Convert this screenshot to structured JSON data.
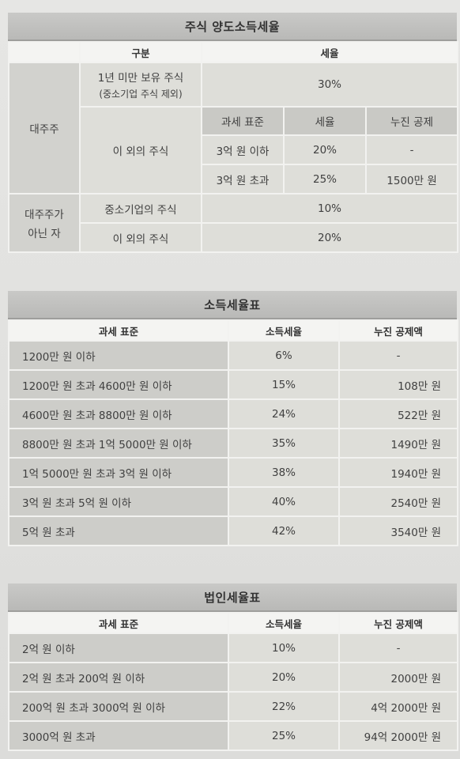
{
  "stock": {
    "title": "주식 양도소득세율",
    "head_category": "구분",
    "head_rate": "세율",
    "major": "대주주",
    "under1_line1": "1년 미만 보유 주식",
    "under1_line2": "(중소기업 주식 제외)",
    "under1_rate": "30%",
    "other": "이 외의 주식",
    "sub_head_base": "과세 표준",
    "sub_head_rate": "세율",
    "sub_head_deduct": "누진 공제",
    "rows": [
      {
        "base": "3억 원 이하",
        "rate": "20%",
        "deduct": "-"
      },
      {
        "base": "3억 원 초과",
        "rate": "25%",
        "deduct": "1500만 원"
      }
    ],
    "minor_line1": "대주주가",
    "minor_line2": "아닌 자",
    "sme": "중소기업의 주식",
    "sme_rate": "10%",
    "minor_other": "이 외의 주식",
    "minor_other_rate": "20%"
  },
  "income": {
    "title": "소득세율표",
    "headers": [
      "과세 표준",
      "소득세율",
      "누진 공제액"
    ],
    "rows": [
      {
        "base": "1200만 원 이하",
        "rate": "6%",
        "deduct": "-"
      },
      {
        "base": "1200만 원 초과 4600만 원 이하",
        "rate": "15%",
        "deduct": "108만 원"
      },
      {
        "base": "4600만 원 초과 8800만 원 이하",
        "rate": "24%",
        "deduct": "522만 원"
      },
      {
        "base": "8800만 원 초과 1억 5000만 원 이하",
        "rate": "35%",
        "deduct": "1490만 원"
      },
      {
        "base": "1억 5000만 원 초과 3억 원 이하",
        "rate": "38%",
        "deduct": "1940만 원"
      },
      {
        "base": "3억 원 초과 5억 원 이하",
        "rate": "40%",
        "deduct": "2540만 원"
      },
      {
        "base": "5억 원 초과",
        "rate": "42%",
        "deduct": "3540만 원"
      }
    ]
  },
  "corp": {
    "title": "법인세율표",
    "headers": [
      "과세 표준",
      "소득세율",
      "누진 공제액"
    ],
    "rows": [
      {
        "base": "2억 원 이하",
        "rate": "10%",
        "deduct": "-"
      },
      {
        "base": "2억 원 초과 200억 원 이하",
        "rate": "20%",
        "deduct": "2000만 원"
      },
      {
        "base": "200억 원 초과 3000억 원 이하",
        "rate": "22%",
        "deduct": "4억 2000만 원"
      },
      {
        "base": "3000억 원 초과",
        "rate": "25%",
        "deduct": "94억 2000만 원"
      }
    ]
  }
}
